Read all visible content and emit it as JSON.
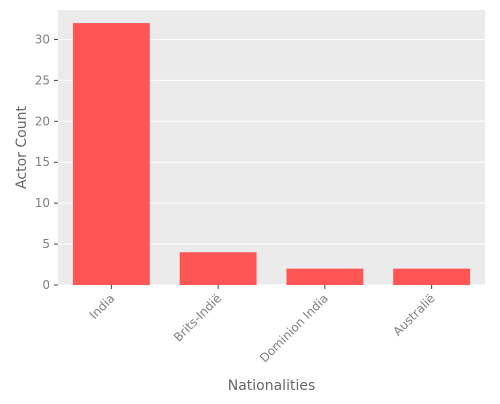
{
  "chart_data": {
    "type": "bar",
    "categories": [
      "India",
      "Brits-Indië",
      "Dominion India",
      "Australië"
    ],
    "values": [
      32,
      4,
      2,
      2
    ],
    "xlabel": "Nationalities",
    "ylabel": "Actor Count",
    "ylim": [
      0,
      33.6
    ],
    "yticks": [
      0,
      5,
      10,
      15,
      20,
      25,
      30
    ],
    "grid": true,
    "bar_color": "#ff5555",
    "panel_background": "#ebebeb",
    "grid_color": "#ffffff",
    "tick_label_color": "#808080",
    "axis_label_color": "#666666"
  }
}
